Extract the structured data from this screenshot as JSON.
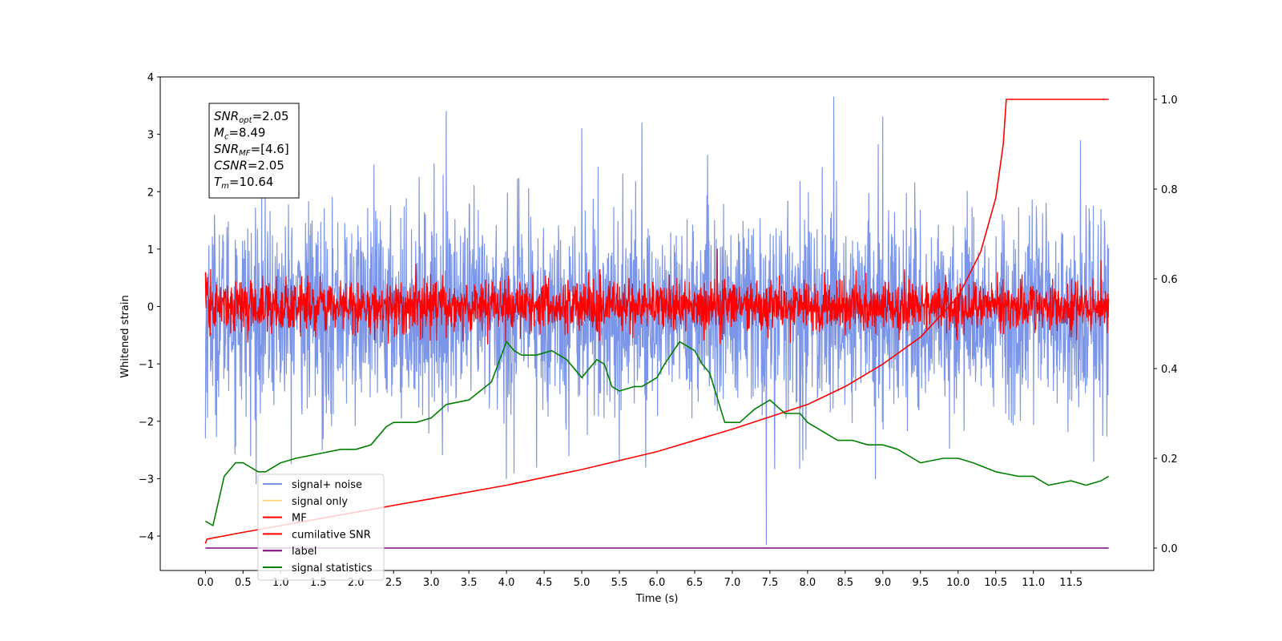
{
  "chart_data": {
    "type": "line",
    "xlabel": "Time (s)",
    "ylabel": "Whitened strain",
    "xlim": [
      -0.6,
      12.6
    ],
    "ylim": [
      -4.6,
      4.0
    ],
    "ylim_right": [
      -0.05,
      1.05
    ],
    "x_ticks": [
      "0.0",
      "0.5",
      "1.0",
      "1.5",
      "2.0",
      "2.5",
      "3.0",
      "3.5",
      "4.0",
      "4.5",
      "5.0",
      "5.5",
      "6.0",
      "6.5",
      "7.0",
      "7.5",
      "8.0",
      "8.5",
      "9.0",
      "9.5",
      "10.0",
      "10.5",
      "11.0",
      "11.5"
    ],
    "y_ticks": [
      "4",
      "3",
      "2",
      "1",
      "0",
      "−1",
      "−2",
      "−3",
      "−4"
    ],
    "y_ticks_right": [
      "1.0",
      "0.8",
      "0.6",
      "0.4",
      "0.2",
      "0.0"
    ],
    "info_box": [
      {
        "sym": "SNR",
        "sub": "opt",
        "val": "=2.05"
      },
      {
        "sym": "M",
        "sub": "c",
        "val": "=8.49"
      },
      {
        "sym": "SNR",
        "sub": "MF",
        "val": "=[4.6]"
      },
      {
        "sym": "CSNR",
        "sub": "",
        "val": "=2.05"
      },
      {
        "sym": "T",
        "sub": "m",
        "val": "=10.64"
      }
    ],
    "legend": {
      "placement": "lower-left",
      "entries": [
        {
          "label": "signal+ noise",
          "color": "#7b96e8"
        },
        {
          "label": "signal only",
          "color": "#ffd27f"
        },
        {
          "label": "MF",
          "color": "#ff0000"
        },
        {
          "label": "cumilative SNR",
          "color": "#ff0000"
        },
        {
          "label": "label",
          "color": "#800080"
        },
        {
          "label": "signal statistics",
          "color": "#008000"
        }
      ]
    },
    "series": [
      {
        "name": "signal+ noise",
        "axis": "left",
        "color": "#7b96e8",
        "x_range": [
          0,
          12
        ],
        "center": -0.1,
        "spread": 1.15,
        "spikes": [
          [
            0.0,
            -2.3
          ],
          [
            0.6,
            -2.6
          ],
          [
            1.55,
            -2.5
          ],
          [
            3.2,
            3.4
          ],
          [
            4.0,
            -3.0
          ],
          [
            4.1,
            -2.9
          ],
          [
            4.4,
            -2.8
          ],
          [
            5.0,
            3.1
          ],
          [
            5.5,
            -2.7
          ],
          [
            5.8,
            3.2
          ],
          [
            5.85,
            -2.8
          ],
          [
            7.45,
            -4.15
          ],
          [
            8.35,
            3.65
          ],
          [
            8.9,
            -3.0
          ],
          [
            9.0,
            3.3
          ],
          [
            11.8,
            -2.7
          ]
        ]
      },
      {
        "name": "MF",
        "axis": "left",
        "color": "#ff0000",
        "x_range": [
          0,
          12
        ],
        "center": 0.0,
        "spread": 0.3,
        "spikes": [
          [
            0.0,
            0.6
          ],
          [
            6.8,
            1.0
          ],
          [
            11.9,
            0.8
          ]
        ]
      },
      {
        "name": "cumilative SNR",
        "axis": "right",
        "x": [
          0.0,
          0.02,
          0.5,
          1.0,
          2.0,
          3.0,
          4.0,
          5.0,
          6.0,
          7.0,
          8.0,
          8.5,
          9.0,
          9.5,
          10.0,
          10.3,
          10.5,
          10.6,
          10.64,
          12.0
        ],
        "y": [
          0.01,
          0.02,
          0.035,
          0.05,
          0.08,
          0.11,
          0.14,
          0.175,
          0.215,
          0.265,
          0.32,
          0.36,
          0.41,
          0.47,
          0.56,
          0.66,
          0.78,
          0.9,
          1.0,
          1.0
        ]
      },
      {
        "name": "label",
        "axis": "right",
        "x": [
          0.0,
          12.0
        ],
        "y": [
          0.0,
          0.0
        ]
      },
      {
        "name": "signal statistics",
        "axis": "right",
        "x": [
          0.0,
          0.1,
          0.25,
          0.4,
          0.5,
          0.7,
          0.8,
          1.0,
          1.2,
          1.5,
          1.8,
          2.0,
          2.2,
          2.4,
          2.5,
          2.8,
          3.0,
          3.2,
          3.5,
          3.8,
          4.0,
          4.1,
          4.2,
          4.3,
          4.4,
          4.6,
          4.8,
          5.0,
          5.2,
          5.3,
          5.4,
          5.5,
          5.7,
          5.8,
          6.0,
          6.1,
          6.3,
          6.5,
          6.6,
          6.7,
          6.9,
          7.1,
          7.3,
          7.5,
          7.7,
          7.9,
          8.0,
          8.2,
          8.4,
          8.6,
          8.8,
          9.0,
          9.2,
          9.5,
          9.8,
          10.0,
          10.2,
          10.5,
          10.8,
          11.0,
          11.2,
          11.5,
          11.7,
          11.9,
          12.0
        ],
        "y": [
          0.06,
          0.05,
          0.16,
          0.19,
          0.19,
          0.17,
          0.17,
          0.19,
          0.2,
          0.21,
          0.22,
          0.22,
          0.23,
          0.27,
          0.28,
          0.28,
          0.29,
          0.32,
          0.33,
          0.37,
          0.46,
          0.44,
          0.43,
          0.43,
          0.43,
          0.44,
          0.42,
          0.38,
          0.42,
          0.41,
          0.36,
          0.35,
          0.36,
          0.36,
          0.38,
          0.41,
          0.46,
          0.44,
          0.41,
          0.39,
          0.28,
          0.28,
          0.31,
          0.33,
          0.3,
          0.3,
          0.28,
          0.26,
          0.24,
          0.24,
          0.23,
          0.23,
          0.22,
          0.19,
          0.2,
          0.2,
          0.19,
          0.17,
          0.16,
          0.16,
          0.14,
          0.15,
          0.14,
          0.15,
          0.16
        ]
      }
    ]
  }
}
